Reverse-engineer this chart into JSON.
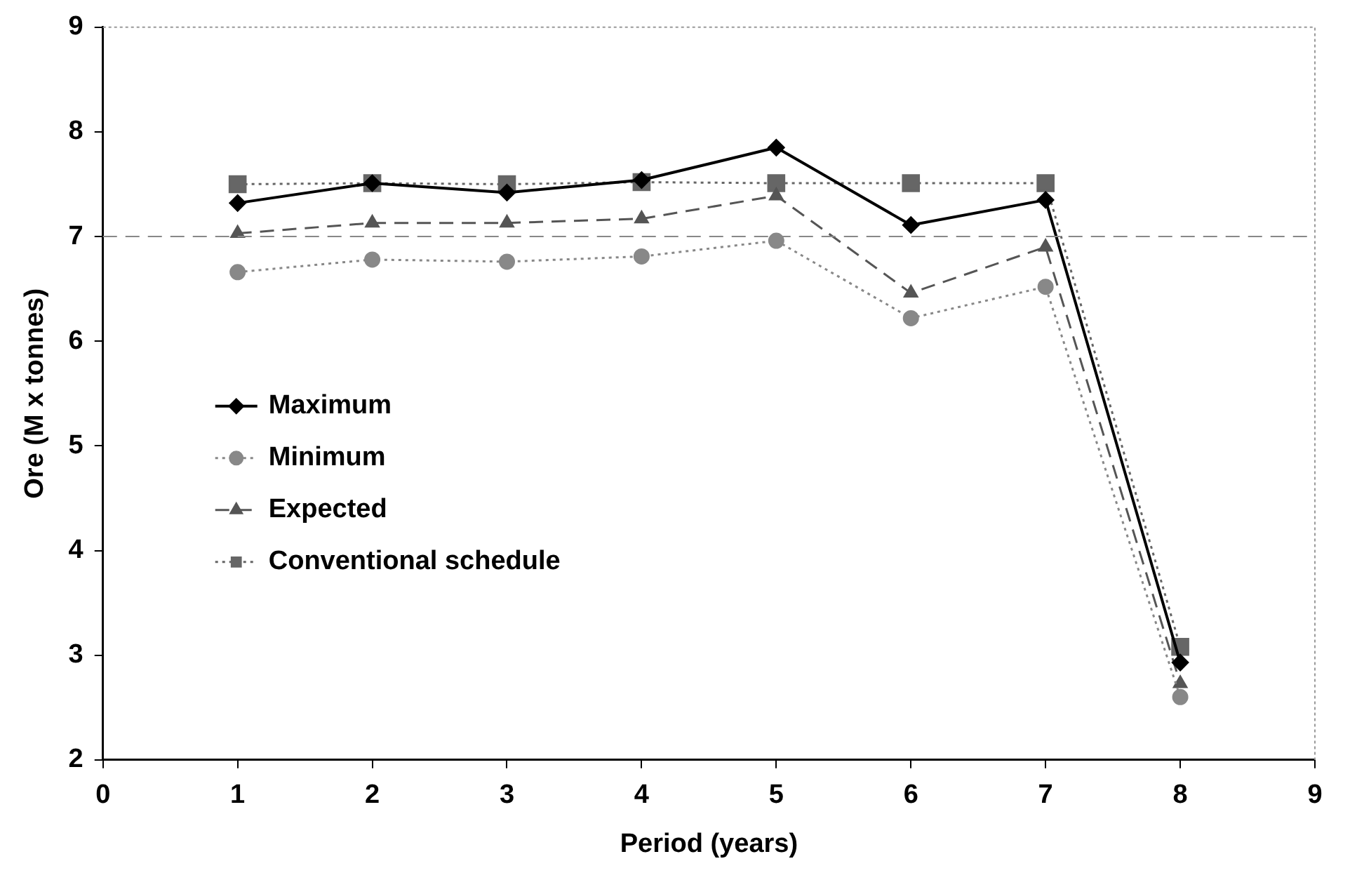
{
  "chart_data": {
    "type": "line",
    "xlabel": "Period (years)",
    "ylabel": "Ore (M x tonnes)",
    "x": [
      1,
      2,
      3,
      4,
      5,
      6,
      7,
      8
    ],
    "xlim": [
      0,
      9
    ],
    "xticks": [
      0,
      1,
      2,
      3,
      4,
      5,
      6,
      7,
      8,
      9
    ],
    "ylim": [
      2,
      9
    ],
    "yticks": [
      2,
      3,
      4,
      5,
      6,
      7,
      8,
      9
    ],
    "grid": false,
    "legend": "left",
    "ref_lines": [
      {
        "axis": "y",
        "value": 7,
        "color": "#888888",
        "line_style": "dashed"
      }
    ],
    "series": [
      {
        "name": "Maximum",
        "color": "#000000",
        "marker": "diamond",
        "line_style": "solid",
        "values": [
          7.32,
          7.51,
          7.42,
          7.54,
          7.85,
          7.11,
          7.35,
          2.93
        ]
      },
      {
        "name": "Minimum",
        "color": "#888888",
        "marker": "circle",
        "line_style": "dotted",
        "values": [
          6.66,
          6.78,
          6.76,
          6.81,
          6.96,
          6.22,
          6.52,
          2.6
        ]
      },
      {
        "name": "Expected",
        "color": "#555555",
        "marker": "triangle",
        "line_style": "dashed",
        "values": [
          7.03,
          7.13,
          7.13,
          7.17,
          7.39,
          6.46,
          6.9,
          2.73
        ]
      },
      {
        "name": "Conventional schedule",
        "color": "#666666",
        "marker": "square",
        "line_style": "dotted",
        "values": [
          7.5,
          7.51,
          7.5,
          7.52,
          7.51,
          7.51,
          7.51,
          3.08
        ]
      }
    ]
  }
}
